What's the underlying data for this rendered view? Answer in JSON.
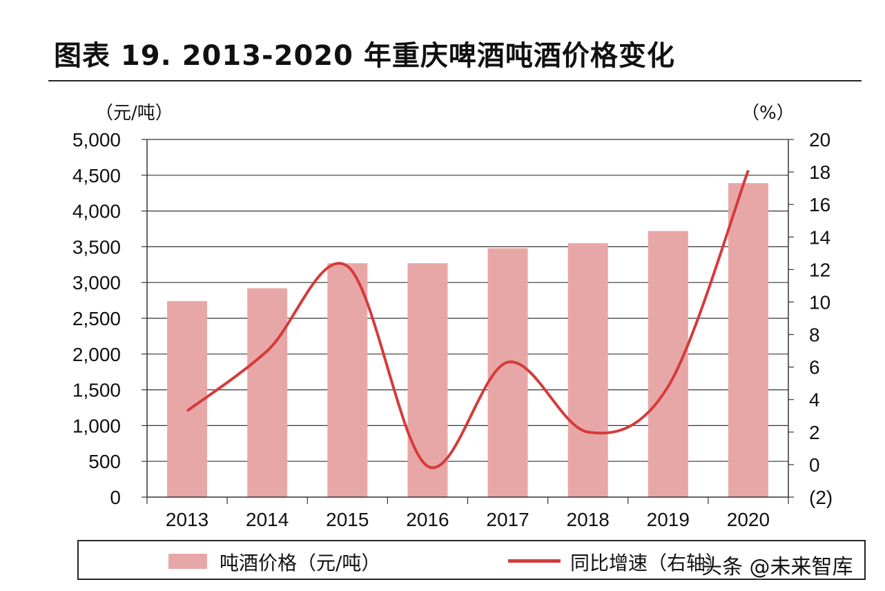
{
  "title": "图表 19. 2013-2020 年重庆啤酒吨酒价格变化",
  "left_unit": "（元/吨）",
  "right_unit": "（%）",
  "colors": {
    "bar": "#e8a7a7",
    "line": "#d63a3a",
    "negative_tick": "#e03030"
  },
  "legend": {
    "bar_label": "吨酒价格（元/吨）",
    "line_label": "同比增速（右轴）"
  },
  "watermark": "头条 @未来智库",
  "chart_data": {
    "type": "bar",
    "categories": [
      "2013",
      "2014",
      "2015",
      "2016",
      "2017",
      "2018",
      "2019",
      "2020"
    ],
    "series": [
      {
        "name": "吨酒价格（元/吨）",
        "type": "bar",
        "axis": "left",
        "values": [
          2740,
          2920,
          3270,
          3270,
          3480,
          3550,
          3720,
          4390
        ]
      },
      {
        "name": "同比增速（右轴）",
        "type": "line",
        "axis": "right",
        "values": [
          3.3,
          7.0,
          12.2,
          -0.1,
          6.3,
          2.0,
          4.8,
          18.1
        ]
      }
    ],
    "left_axis": {
      "ylim": [
        0,
        5000
      ],
      "ticks": [
        "0",
        "500",
        "1,000",
        "1,500",
        "2,000",
        "2,500",
        "3,000",
        "3,500",
        "4,000",
        "4,500",
        "5,000"
      ]
    },
    "right_axis": {
      "ylim": [
        -2,
        20
      ],
      "ticks": [
        "(2)",
        "0",
        "2",
        "4",
        "6",
        "8",
        "10",
        "12",
        "14",
        "16",
        "18",
        "20"
      ]
    },
    "grid": true,
    "legend_position": "bottom"
  }
}
